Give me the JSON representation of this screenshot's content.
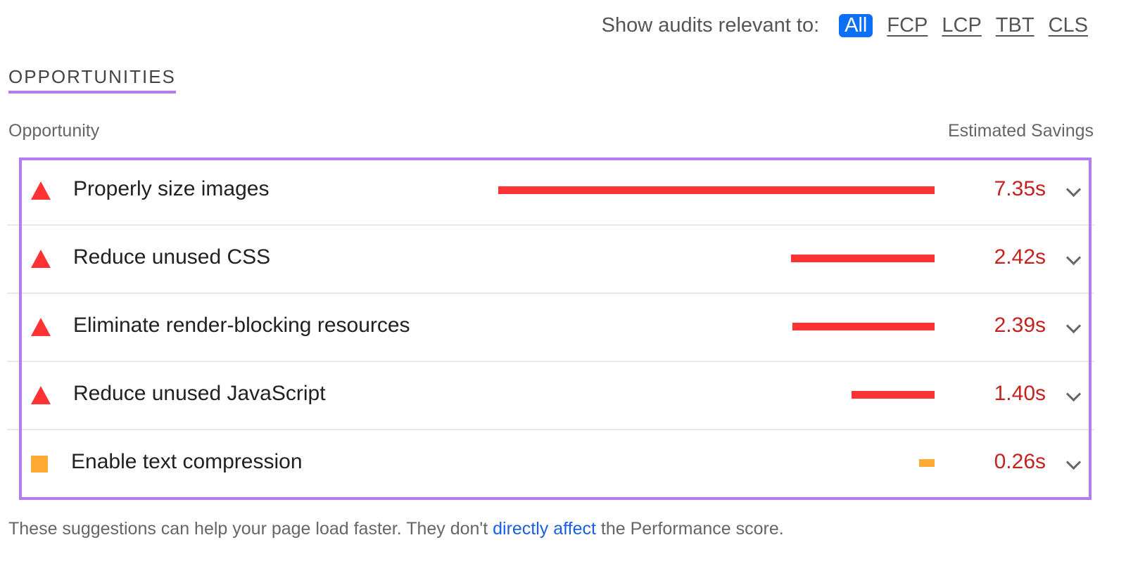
{
  "filter": {
    "label": "Show audits relevant to:",
    "options": [
      "All",
      "FCP",
      "LCP",
      "TBT",
      "CLS"
    ],
    "active": "All"
  },
  "section_title": "OPPORTUNITIES",
  "columns": {
    "left": "Opportunity",
    "right": "Estimated Savings"
  },
  "colors": {
    "fail": "#ff3333",
    "average": "#ffaa33",
    "value": "#c5221f",
    "highlight": "#b57bf5",
    "active_chip": "#0c6ff5"
  },
  "opportunities": [
    {
      "title": "Properly size images",
      "savings": "7.35s",
      "seconds": 7.35,
      "status": "fail",
      "icon": "triangle-icon"
    },
    {
      "title": "Reduce unused CSS",
      "savings": "2.42s",
      "seconds": 2.42,
      "status": "fail",
      "icon": "triangle-icon"
    },
    {
      "title": "Eliminate render-blocking resources",
      "savings": "2.39s",
      "seconds": 2.39,
      "status": "fail",
      "icon": "triangle-icon"
    },
    {
      "title": "Reduce unused JavaScript",
      "savings": "1.40s",
      "seconds": 1.4,
      "status": "fail",
      "icon": "triangle-icon"
    },
    {
      "title": "Enable text compression",
      "savings": "0.26s",
      "seconds": 0.26,
      "status": "average",
      "icon": "square-icon"
    }
  ],
  "footer": {
    "before": "These suggestions can help your page load faster. They don't ",
    "link": "directly affect",
    "after": " the Performance score."
  }
}
